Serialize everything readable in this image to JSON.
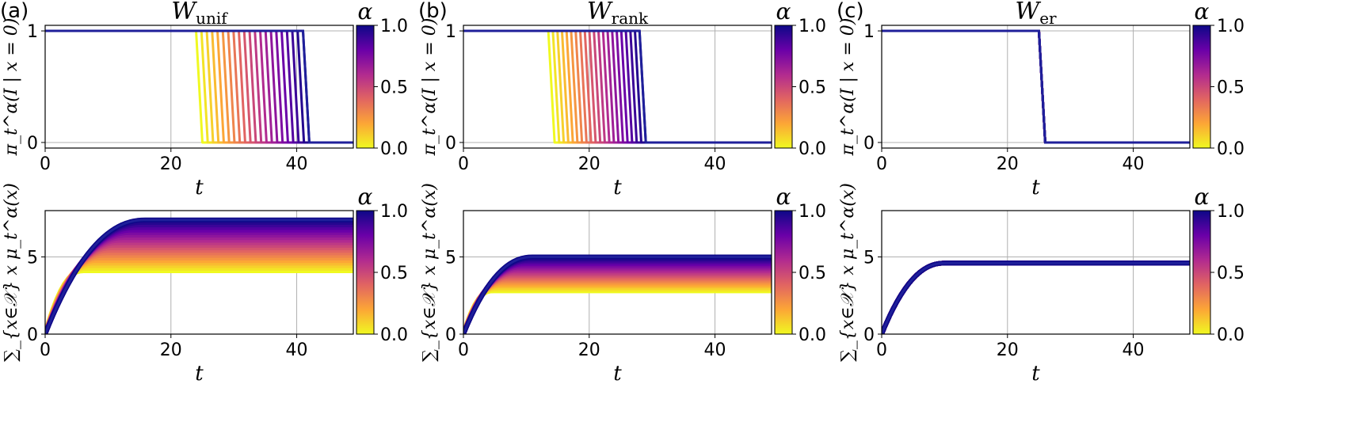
{
  "colorbar": {
    "label": "α",
    "ticks": [
      "0.0",
      "0.5",
      "1.0"
    ],
    "colormap": [
      "#0d0887",
      "#6a00a8",
      "#b12a90",
      "#e16462",
      "#fca636",
      "#f0f921"
    ]
  },
  "chart_data": [
    {
      "type": "line",
      "panel_label": "(a)",
      "title_main": "W",
      "title_sub": "unif",
      "xlabel": "t",
      "ylabel": "π_t^α(I | x = 0)",
      "xlim": [
        0,
        49
      ],
      "ylim": [
        -0.05,
        1.05
      ],
      "xticks": [
        0,
        20,
        40
      ],
      "yticks": [
        0,
        1
      ],
      "kind": "step",
      "drop_start": [
        24,
        41
      ],
      "drop_width": 1
    },
    {
      "type": "line",
      "panel_label": "(b)",
      "title_main": "W",
      "title_sub": "rank",
      "xlabel": "t",
      "ylabel": "π_t^α(I | x = 0)",
      "xlim": [
        0,
        49
      ],
      "ylim": [
        -0.05,
        1.05
      ],
      "xticks": [
        0,
        20,
        40
      ],
      "yticks": [
        0,
        1
      ],
      "kind": "step",
      "drop_start": [
        13.5,
        28
      ],
      "drop_width": 1
    },
    {
      "type": "line",
      "panel_label": "(c)",
      "title_main": "W",
      "title_sub": "er",
      "xlabel": "t",
      "ylabel": "π_t^α(I | x = 0)",
      "xlim": [
        0,
        49
      ],
      "ylim": [
        -0.05,
        1.05
      ],
      "xticks": [
        0,
        20,
        40
      ],
      "yticks": [
        0,
        1
      ],
      "kind": "step",
      "drop_start": [
        25,
        25
      ],
      "drop_width": 1
    },
    {
      "type": "line",
      "panel_label": "",
      "xlabel": "t",
      "ylabel": "∑_{x∈𝒳} x μ_t^α(x)",
      "xlim": [
        0,
        49
      ],
      "ylim": [
        0,
        8
      ],
      "xticks": [
        0,
        20,
        40
      ],
      "yticks": [
        0,
        5
      ],
      "kind": "rise",
      "plateau": [
        4.1,
        7.4
      ],
      "sat_time": [
        6,
        16
      ]
    },
    {
      "type": "line",
      "panel_label": "",
      "xlabel": "t",
      "ylabel": "∑_{x∈𝒳} x μ_t^α(x)",
      "xlim": [
        0,
        49
      ],
      "ylim": [
        0,
        8
      ],
      "xticks": [
        0,
        20,
        40
      ],
      "yticks": [
        0,
        5
      ],
      "kind": "rise",
      "plateau": [
        2.8,
        5.0
      ],
      "sat_time": [
        4.5,
        11
      ]
    },
    {
      "type": "line",
      "panel_label": "",
      "xlabel": "t",
      "ylabel": "∑_{x∈𝒳} x μ_t^α(x)",
      "xlim": [
        0,
        49
      ],
      "ylim": [
        0,
        8
      ],
      "xticks": [
        0,
        20,
        40
      ],
      "yticks": [
        0,
        5
      ],
      "kind": "rise",
      "plateau": [
        4.6,
        4.6
      ],
      "sat_time": [
        10,
        10
      ]
    }
  ]
}
